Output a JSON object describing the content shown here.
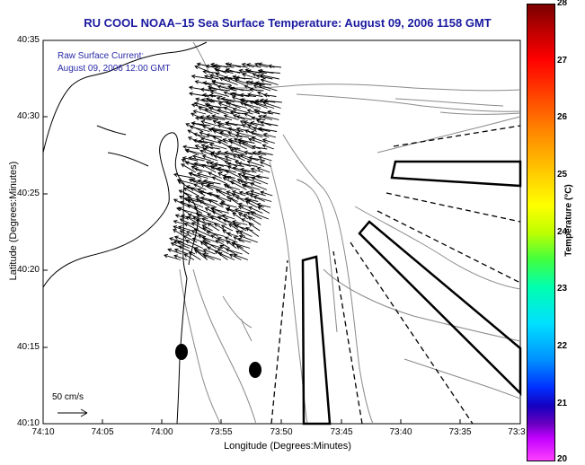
{
  "title": "RU COOL  NOAA–15  Sea Surface Temperature:  August 09, 2006 1158 GMT",
  "annotation": {
    "line1": "Raw Surface Current:",
    "line2": "August 09, 2006 12:00 GMT"
  },
  "scale": {
    "label": "50 cm/s"
  },
  "axes": {
    "x_title": "Longitude (Degrees:Minutes)",
    "y_title": "Latitude (Degrees:Minutes)",
    "x_ticks": [
      "74:10",
      "74:05",
      "74:00",
      "73:55",
      "73:50",
      "73:45",
      "73:40",
      "73:35",
      "73:3"
    ],
    "y_ticks": [
      "40:35",
      "40:30",
      "40:25",
      "40:20",
      "40:15",
      "40:10"
    ]
  },
  "colorbar": {
    "title": "Temperature (°C)",
    "ticks": [
      "28",
      "27",
      "26",
      "25",
      "24",
      "23",
      "22",
      "21",
      "20"
    ],
    "colors": {
      "high": "#7a0000",
      "mid": "#ffff00",
      "low": "#ff40ff"
    }
  },
  "colors": {
    "title": "#1a1aa0",
    "annotation": "#2a2aa8",
    "coast": "#000000",
    "isobath": "#888888"
  }
}
